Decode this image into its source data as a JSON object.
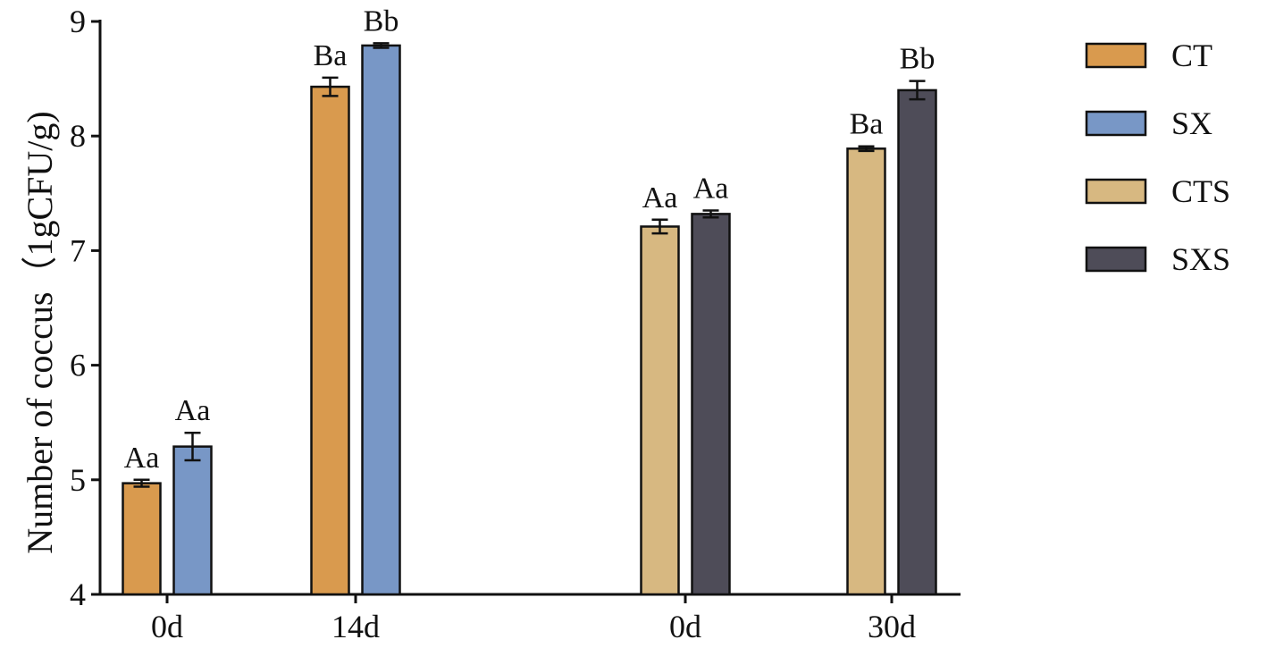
{
  "chart_data": {
    "type": "bar",
    "ylabel": "Number of coccus（1gCFU/g)",
    "ylim": [
      4,
      9
    ],
    "yticks": [
      "4",
      "5",
      "6",
      "7",
      "8",
      "9"
    ],
    "groups": [
      {
        "label": "0d",
        "bars": [
          {
            "series": "CT",
            "value": 4.97,
            "error": 0.03,
            "annotation": "Aa"
          },
          {
            "series": "SX",
            "value": 5.29,
            "error": 0.12,
            "annotation": "Aa"
          }
        ]
      },
      {
        "label": "14d",
        "bars": [
          {
            "series": "CT",
            "value": 8.43,
            "error": 0.08,
            "annotation": "Ba"
          },
          {
            "series": "SX",
            "value": 8.79,
            "error": 0.02,
            "annotation": "Bb"
          }
        ]
      },
      {
        "label": "0d",
        "bars": [
          {
            "series": "CTS",
            "value": 7.21,
            "error": 0.06,
            "annotation": "Aa"
          },
          {
            "series": "SXS",
            "value": 7.32,
            "error": 0.03,
            "annotation": "Aa"
          }
        ]
      },
      {
        "label": "30d",
        "bars": [
          {
            "series": "CTS",
            "value": 7.89,
            "error": 0.02,
            "annotation": "Ba"
          },
          {
            "series": "SXS",
            "value": 8.4,
            "error": 0.08,
            "annotation": "Bb"
          }
        ]
      }
    ],
    "series": [
      {
        "name": "CT",
        "color": "#D99A4E"
      },
      {
        "name": "SX",
        "color": "#7897C6"
      },
      {
        "name": "CTS",
        "color": "#D7B881"
      },
      {
        "name": "SXS",
        "color": "#4E4C58"
      }
    ],
    "legend_position": "right"
  }
}
